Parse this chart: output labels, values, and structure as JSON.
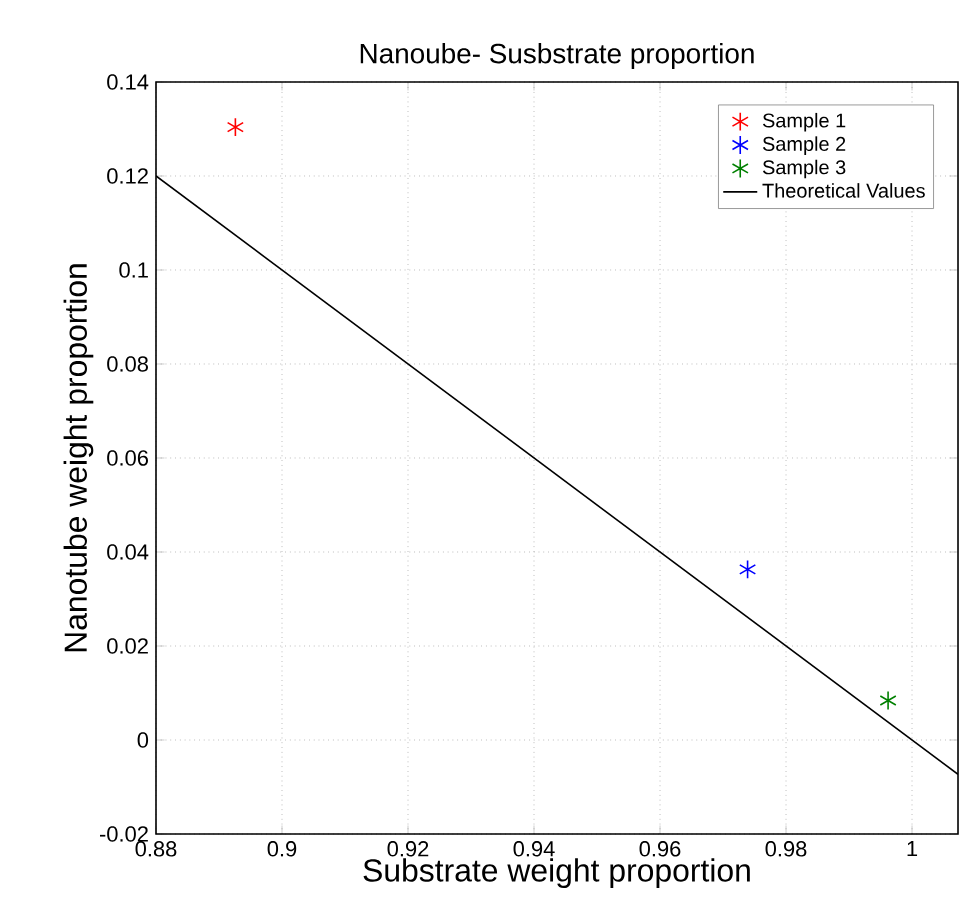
{
  "chart_data": {
    "type": "scatter",
    "title": "Nanoube- Susbstrate proportion",
    "xlabel": "Substrate weight proportion",
    "ylabel": "Nanotube weight proportion",
    "xlim": [
      0.88,
      1.0073
    ],
    "ylim": [
      -0.02,
      0.14
    ],
    "xticks": [
      0.88,
      0.9,
      0.92,
      0.94,
      0.96,
      0.98,
      1
    ],
    "yticks": [
      -0.02,
      0,
      0.02,
      0.04,
      0.06,
      0.08,
      0.1,
      0.12,
      0.14
    ],
    "grid": true,
    "legend": "top right",
    "marker": "cross",
    "series": [
      {
        "name": "Sample 1",
        "color": "#ff0000",
        "x": [
          0.8926
        ],
        "values": [
          0.1304
        ]
      },
      {
        "name": "Sample 2",
        "color": "#0000ff",
        "x": [
          0.9739
        ],
        "values": [
          0.0363
        ]
      },
      {
        "name": "Sample 3",
        "color": "#008000",
        "x": [
          0.9962
        ],
        "values": [
          0.0084
        ]
      },
      {
        "name": "Theoretical Values",
        "type": "line",
        "color": "#000000",
        "marker": "none",
        "line_style": "solid",
        "x": [
          0.88,
          1.0073
        ],
        "values": [
          0.12,
          -0.0073
        ]
      }
    ]
  }
}
